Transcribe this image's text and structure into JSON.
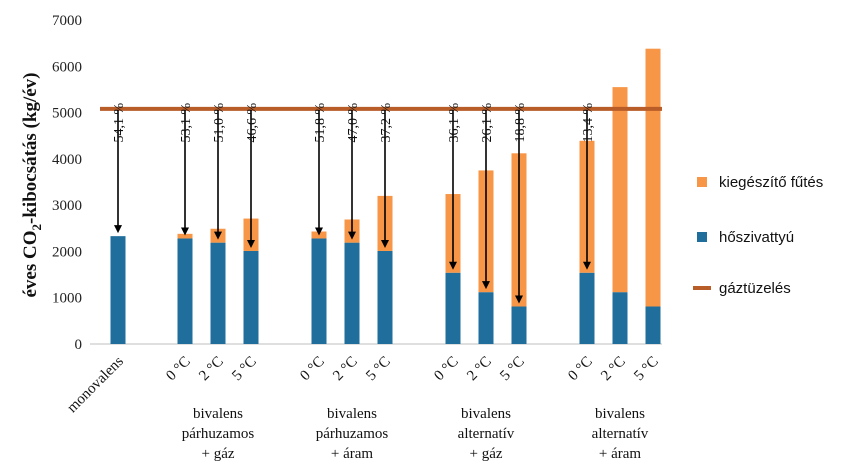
{
  "chart_data": {
    "type": "bar",
    "stacked": true,
    "ylabel_main": "éves CO",
    "ylabel_sub": "2",
    "ylabel_rest": "-kibocsátás (kg/év)",
    "ylim": [
      0,
      7000
    ],
    "yticks": [
      "0",
      "1000",
      "2000",
      "3000",
      "4000",
      "5000",
      "6000",
      "7000"
    ],
    "grid": false,
    "legend_position": "right",
    "bars": [
      {
        "label": "monovalens",
        "heat_pump": 2330,
        "supplementary": 0,
        "pct": "54,1 %"
      },
      {
        "label": "0 °C",
        "heat_pump": 2280,
        "supplementary": 100,
        "pct": "53,1 %"
      },
      {
        "label": "2 °C",
        "heat_pump": 2190,
        "supplementary": 300,
        "pct": "51,0 %"
      },
      {
        "label": "5 °C",
        "heat_pump": 2010,
        "supplementary": 700,
        "pct": "46,6 %"
      },
      {
        "label": "0 °C",
        "heat_pump": 2280,
        "supplementary": 150,
        "pct": "51,8 %"
      },
      {
        "label": "2 °C",
        "heat_pump": 2190,
        "supplementary": 500,
        "pct": "47,0 %"
      },
      {
        "label": "5 °C",
        "heat_pump": 2010,
        "supplementary": 1190,
        "pct": "37,2 %"
      },
      {
        "label": "0 °C",
        "heat_pump": 1540,
        "supplementary": 1700,
        "pct": "36,1 %"
      },
      {
        "label": "2 °C",
        "heat_pump": 1120,
        "supplementary": 2630,
        "pct": "26,1 %"
      },
      {
        "label": "5 °C",
        "heat_pump": 810,
        "supplementary": 3310,
        "pct": "18,8 %"
      },
      {
        "label": "0 °C",
        "heat_pump": 1540,
        "supplementary": 2850,
        "pct": "13,4 %"
      },
      {
        "label": "2 °C",
        "heat_pump": 1120,
        "supplementary": 4430,
        "pct": ""
      },
      {
        "label": "5 °C",
        "heat_pump": 810,
        "supplementary": 5570,
        "pct": ""
      }
    ],
    "groups": [
      {
        "lines": [
          "bivalens",
          "párhuzamos",
          "+ gáz"
        ]
      },
      {
        "lines": [
          "bivalens",
          "párhuzamos",
          "+ áram"
        ]
      },
      {
        "lines": [
          "bivalens",
          "alternatív",
          "+ gáz"
        ]
      },
      {
        "lines": [
          "bivalens",
          "alternatív",
          "+ áram"
        ]
      }
    ],
    "reference_line": {
      "name": "gáztüzelés",
      "value": 5080
    },
    "series": [
      {
        "name": "kiegészítő fűtés",
        "color": "#f79646"
      },
      {
        "name": "hőszivattyú",
        "color": "#1f6e9c"
      },
      {
        "name": "gáztüzelés",
        "color": "#b85c28"
      }
    ]
  }
}
